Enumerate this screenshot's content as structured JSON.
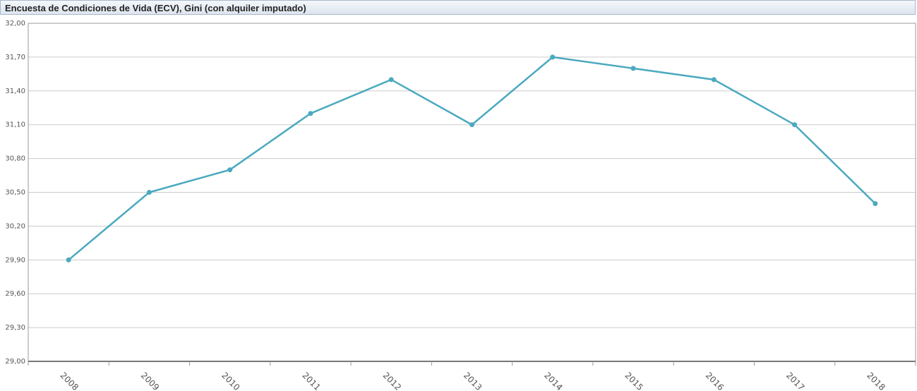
{
  "chart_data": {
    "type": "line",
    "title": "Encuesta de Condiciones de Vida (ECV), Gini (con alquiler imputado)",
    "categories": [
      "2008",
      "2009",
      "2010",
      "2011",
      "2012",
      "2013",
      "2014",
      "2015",
      "2016",
      "2017",
      "2018"
    ],
    "values": [
      29.9,
      30.5,
      30.7,
      31.2,
      31.5,
      31.1,
      31.7,
      31.6,
      31.5,
      31.1,
      30.4
    ],
    "color": "#4aa9bf",
    "ylim": [
      29,
      32
    ],
    "yticks": [
      {
        "value": 29,
        "label": "29,00"
      },
      {
        "value": 29.3,
        "label": "29,30"
      },
      {
        "value": 29.6,
        "label": "29,60"
      },
      {
        "value": 29.9,
        "label": "29,90"
      },
      {
        "value": 30.2,
        "label": "30,20"
      },
      {
        "value": 30.5,
        "label": "30,50"
      },
      {
        "value": 30.8,
        "label": "30,80"
      },
      {
        "value": 31.1,
        "label": "31,10"
      },
      {
        "value": 31.4,
        "label": "31,40"
      },
      {
        "value": 31.7,
        "label": "31,70"
      },
      {
        "value": 32,
        "label": "32,00"
      }
    ],
    "grid": true
  }
}
